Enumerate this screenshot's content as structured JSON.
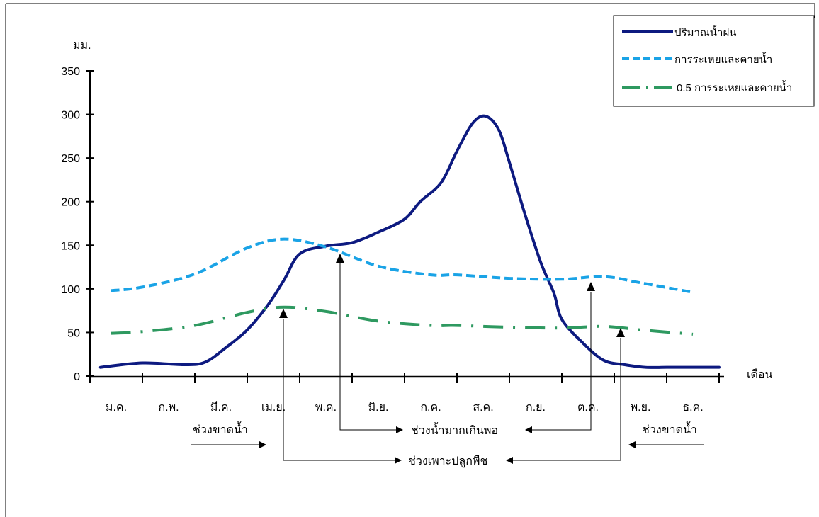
{
  "chart_data": {
    "type": "line",
    "ylabel": "มม.",
    "xlabel": "เดือน",
    "ylim": [
      0,
      350
    ],
    "yticks": [
      0,
      50,
      100,
      150,
      200,
      250,
      300,
      350
    ],
    "categories": [
      "ม.ค.",
      "ก.พ.",
      "มี.ค.",
      "เม.ย.",
      "พ.ค.",
      "มิ.ย.",
      "ก.ค.",
      "ส.ค.",
      "ก.ย.",
      "ต.ค.",
      "พ.ย.",
      "ธ.ค."
    ],
    "series": [
      {
        "name": "ปริมาณน้ำฝน",
        "color": "#0d1a80",
        "style": "solid",
        "x": [
          0.2,
          1.0,
          1.8,
          2.2,
          2.6,
          3.0,
          3.4,
          3.7,
          4.0,
          4.5,
          5.0,
          5.5,
          6.0,
          6.3,
          6.7,
          7.0,
          7.3,
          7.55,
          7.8,
          8.0,
          8.3,
          8.6,
          8.85,
          9.0,
          9.4,
          9.8,
          10.2,
          10.6,
          11.0,
          11.5,
          12.0
        ],
        "y": [
          10,
          15,
          13,
          16,
          33,
          53,
          82,
          110,
          140,
          149,
          153,
          165,
          180,
          200,
          222,
          258,
          290,
          298,
          282,
          245,
          185,
          130,
          95,
          65,
          38,
          18,
          13,
          10,
          10,
          10,
          10
        ]
      },
      {
        "name": "การระเหยและคายน้ำ",
        "color": "#1aa3e6",
        "style": "dash",
        "x": [
          0.4,
          1.0,
          2.0,
          3.0,
          3.7,
          4.5,
          5.5,
          6.5,
          7.0,
          8.0,
          9.0,
          9.8,
          10.5,
          11.5
        ],
        "y": [
          98,
          102,
          117,
          147,
          157,
          148,
          126,
          116,
          116,
          112,
          111,
          114,
          107,
          96
        ]
      },
      {
        "name": "0.5 การระเหยและคายน้ำ",
        "color": "#2e9960",
        "style": "dashdot",
        "x": [
          0.4,
          1.0,
          2.0,
          3.0,
          3.7,
          4.5,
          5.5,
          6.5,
          7.0,
          8.0,
          9.0,
          9.8,
          10.5,
          11.5
        ],
        "y": [
          49,
          51,
          58,
          73,
          79,
          74,
          63,
          58,
          58,
          56,
          55,
          57,
          53,
          48
        ]
      }
    ],
    "annotations": [
      {
        "text": "ช่วงขาดน้ำ",
        "key": "dry1"
      },
      {
        "text": "ช่วงน้ำมากเกินพอ",
        "key": "excess"
      },
      {
        "text": "ช่วงขาดน้ำ",
        "key": "dry2"
      },
      {
        "text": "ช่วงเพาะปลูกพืช",
        "key": "growing"
      }
    ],
    "legend_position": "top-right"
  }
}
